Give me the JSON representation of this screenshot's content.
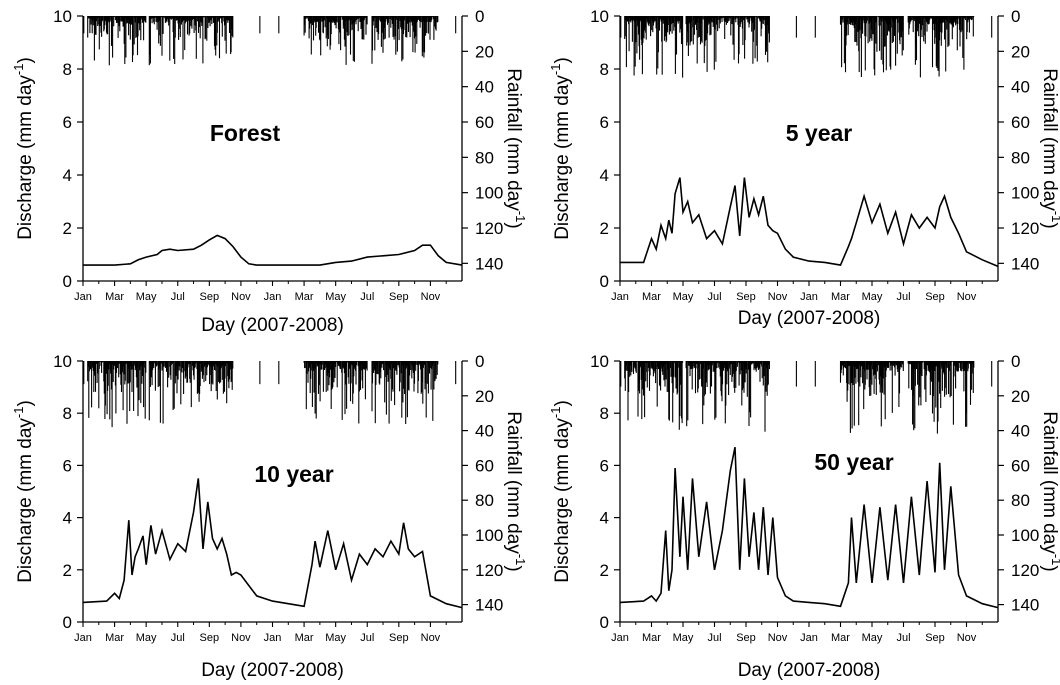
{
  "figure": {
    "y_label": "Discharge (mm day",
    "y_label_sup": "-1",
    "y_label_close": ")",
    "y2_label": "Rainfall (mm day",
    "y2_label_sup": "-1",
    "y2_label_close": ")",
    "x_label": "Day (2007-2008)"
  },
  "chart_data": [
    {
      "type": "line",
      "title": "Forest",
      "xlabel": "Day (2007-2008)",
      "ylabel": "Discharge (mm day-1)",
      "y2label": "Rainfall (mm day-1)",
      "x_ticks": [
        "Jan",
        "Mar",
        "May",
        "Jul",
        "Sep",
        "Nov",
        "Jan",
        "Mar",
        "May",
        "Jul",
        "Sep",
        "Nov"
      ],
      "x_unit": "month index from Jan 2007",
      "xlim": [
        0,
        24
      ],
      "ylim": [
        0,
        10
      ],
      "y_ticks": [
        0,
        2,
        4,
        6,
        8,
        10
      ],
      "y2lim": [
        0,
        150
      ],
      "y2_inverted": true,
      "y2_ticks": [
        0,
        20,
        40,
        60,
        80,
        100,
        120,
        140
      ],
      "series": [
        {
          "kind": "line",
          "x": [
            0,
            1,
            2,
            3,
            3.5,
            4,
            4.7,
            5,
            5.5,
            6,
            7,
            7.5,
            8,
            8.5,
            9,
            9.5,
            10,
            10.5,
            11,
            12,
            13,
            14,
            15,
            16,
            17,
            18,
            19,
            20,
            21,
            21.5,
            22,
            22.5,
            23,
            24
          ],
          "y": [
            0.6,
            0.6,
            0.6,
            0.65,
            0.8,
            0.9,
            1.0,
            1.15,
            1.2,
            1.15,
            1.2,
            1.35,
            1.55,
            1.72,
            1.6,
            1.3,
            0.9,
            0.65,
            0.6,
            0.6,
            0.6,
            0.6,
            0.6,
            0.7,
            0.75,
            0.9,
            0.95,
            1.0,
            1.15,
            1.35,
            1.35,
            0.95,
            0.7,
            0.6
          ]
        },
        {
          "kind": "bars",
          "axis": "y2",
          "name": "rainfall",
          "periods": [
            [
              0.3,
              4.0
            ],
            [
              4.2,
              9.5
            ],
            [
              14.0,
              18.0
            ],
            [
              18.3,
              22.5
            ]
          ],
          "max": 28
        }
      ]
    },
    {
      "type": "line",
      "title": "5 year",
      "xlabel": "Day (2007-2008)",
      "ylabel": "Discharge (mm day-1)",
      "y2label": "Rainfall (mm day-1)",
      "x_ticks": [
        "Jan",
        "Mar",
        "May",
        "Jul",
        "Sep",
        "Nov",
        "Jan",
        "Mar",
        "May",
        "Jul",
        "Sep",
        "Nov"
      ],
      "x_unit": "month index from Jan 2007",
      "xlim": [
        0,
        24
      ],
      "ylim": [
        0,
        10
      ],
      "y_ticks": [
        0,
        2,
        4,
        6,
        8,
        10
      ],
      "y2lim": [
        0,
        150
      ],
      "y2_inverted": true,
      "y2_ticks": [
        0,
        20,
        40,
        60,
        80,
        100,
        120,
        140
      ],
      "series": [
        {
          "kind": "line",
          "x": [
            0,
            1.5,
            2,
            2.3,
            2.6,
            2.9,
            3.1,
            3.3,
            3.5,
            3.8,
            4,
            4.3,
            4.6,
            5,
            5.5,
            6,
            6.5,
            7,
            7.3,
            7.6,
            7.9,
            8.2,
            8.5,
            8.8,
            9.1,
            9.4,
            9.7,
            10,
            10.5,
            11,
            12,
            13,
            14,
            14.5,
            14.7,
            15,
            15.5,
            16,
            16.5,
            17,
            17.5,
            18,
            18.5,
            19,
            19.5,
            20,
            20.3,
            20.6,
            21,
            21.5,
            22,
            23,
            24
          ],
          "y": [
            0.7,
            0.7,
            1.6,
            1.2,
            2.1,
            1.6,
            2.3,
            1.8,
            3.3,
            3.9,
            2.6,
            3.0,
            2.2,
            2.5,
            1.6,
            1.9,
            1.4,
            2.8,
            3.6,
            1.7,
            3.9,
            2.4,
            3.1,
            2.5,
            3.2,
            2.1,
            1.9,
            1.8,
            1.2,
            0.9,
            0.75,
            0.7,
            0.6,
            1.3,
            1.6,
            2.2,
            3.2,
            2.2,
            2.9,
            1.8,
            2.6,
            1.4,
            2.5,
            2.0,
            2.4,
            2.0,
            2.8,
            3.2,
            2.4,
            1.8,
            1.1,
            0.8,
            0.55
          ]
        },
        {
          "kind": "bars",
          "axis": "y2",
          "name": "rainfall",
          "periods": [
            [
              0.3,
              4.0
            ],
            [
              4.2,
              9.5
            ],
            [
              14.0,
              18.0
            ],
            [
              18.3,
              22.5
            ]
          ],
          "max": 35
        }
      ]
    },
    {
      "type": "line",
      "title": "10 year",
      "xlabel": "Day (2007-2008)",
      "ylabel": "Discharge (mm day-1)",
      "y2label": "Rainfall (mm day-1)",
      "x_ticks": [
        "Jan",
        "Mar",
        "May",
        "Jul",
        "Sep",
        "Nov",
        "Jan",
        "Mar",
        "May",
        "Jul",
        "Sep",
        "Nov"
      ],
      "x_unit": "month index from Jan 2007",
      "xlim": [
        0,
        24
      ],
      "ylim": [
        0,
        10
      ],
      "y_ticks": [
        0,
        2,
        4,
        6,
        8,
        10
      ],
      "y2lim": [
        0,
        150
      ],
      "y2_inverted": true,
      "y2_ticks": [
        0,
        20,
        40,
        60,
        80,
        100,
        120,
        140
      ],
      "series": [
        {
          "kind": "line",
          "x": [
            0,
            1.5,
            2,
            2.3,
            2.6,
            2.9,
            3.1,
            3.3,
            3.5,
            3.8,
            4,
            4.3,
            4.6,
            5,
            5.5,
            6,
            6.5,
            7,
            7.3,
            7.6,
            7.9,
            8.2,
            8.5,
            8.8,
            9.1,
            9.4,
            9.7,
            10,
            10.5,
            11,
            12,
            13,
            14,
            14.5,
            14.7,
            15,
            15.5,
            16,
            16.5,
            17,
            17.5,
            18,
            18.5,
            19,
            19.5,
            20,
            20.3,
            20.6,
            21,
            21.5,
            22,
            23,
            24
          ],
          "y": [
            0.75,
            0.8,
            1.1,
            0.9,
            1.6,
            3.9,
            1.8,
            2.5,
            2.8,
            3.3,
            2.2,
            3.7,
            2.6,
            3.5,
            2.4,
            3.0,
            2.7,
            4.2,
            5.5,
            2.8,
            4.6,
            3.2,
            2.8,
            3.2,
            2.6,
            1.8,
            1.9,
            1.8,
            1.4,
            1.0,
            0.8,
            0.7,
            0.6,
            2.2,
            3.1,
            2.1,
            3.5,
            2.0,
            3.0,
            1.6,
            2.6,
            2.2,
            2.8,
            2.5,
            3.1,
            2.6,
            3.8,
            2.8,
            2.5,
            2.7,
            1.0,
            0.7,
            0.55
          ]
        },
        {
          "kind": "bars",
          "axis": "y2",
          "name": "rainfall",
          "periods": [
            [
              0.3,
              4.0
            ],
            [
              4.2,
              9.5
            ],
            [
              14.0,
              18.0
            ],
            [
              18.3,
              22.5
            ]
          ],
          "max": 38
        }
      ]
    },
    {
      "type": "line",
      "title": "50 year",
      "xlabel": "Day (2007-2008)",
      "ylabel": "Discharge (mm day-1)",
      "y2label": "Rainfall (mm day-1)",
      "x_ticks": [
        "Jan",
        "Mar",
        "May",
        "Jul",
        "Sep",
        "Nov",
        "Jan",
        "Mar",
        "May",
        "Jul",
        "Sep",
        "Nov"
      ],
      "x_unit": "month index from Jan 2007",
      "xlim": [
        0,
        24
      ],
      "ylim": [
        0,
        10
      ],
      "y_ticks": [
        0,
        2,
        4,
        6,
        8,
        10
      ],
      "y2lim": [
        0,
        150
      ],
      "y2_inverted": true,
      "y2_ticks": [
        0,
        20,
        40,
        60,
        80,
        100,
        120,
        140
      ],
      "series": [
        {
          "kind": "line",
          "x": [
            0,
            1.5,
            2,
            2.3,
            2.6,
            2.9,
            3.1,
            3.3,
            3.5,
            3.8,
            4,
            4.3,
            4.6,
            5,
            5.5,
            6,
            6.5,
            7,
            7.3,
            7.6,
            7.9,
            8.2,
            8.5,
            8.8,
            9.1,
            9.4,
            9.7,
            10,
            10.5,
            11,
            12,
            13,
            14,
            14.5,
            14.7,
            15,
            15.5,
            16,
            16.5,
            17,
            17.5,
            18,
            18.5,
            19,
            19.5,
            20,
            20.3,
            20.6,
            21,
            21.5,
            22,
            23,
            24
          ],
          "y": [
            0.75,
            0.8,
            1.0,
            0.8,
            1.1,
            3.5,
            1.2,
            2.0,
            5.9,
            2.5,
            4.8,
            2.0,
            5.5,
            2.5,
            4.6,
            2.0,
            3.5,
            5.8,
            6.7,
            2.0,
            5.5,
            2.5,
            4.2,
            2.0,
            4.4,
            1.8,
            4.0,
            1.7,
            1.0,
            0.8,
            0.75,
            0.7,
            0.6,
            1.5,
            4.0,
            1.5,
            4.5,
            1.5,
            4.4,
            1.6,
            4.5,
            1.5,
            4.8,
            1.8,
            5.4,
            1.9,
            6.1,
            2.0,
            5.2,
            1.8,
            1.0,
            0.7,
            0.55
          ]
        },
        {
          "kind": "bars",
          "axis": "y2",
          "name": "rainfall",
          "periods": [
            [
              0.3,
              4.0
            ],
            [
              4.2,
              9.5
            ],
            [
              14.0,
              18.0
            ],
            [
              18.3,
              22.5
            ]
          ],
          "max": 42
        }
      ]
    }
  ]
}
